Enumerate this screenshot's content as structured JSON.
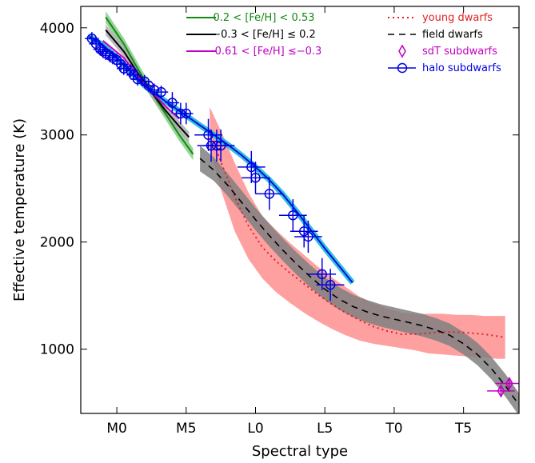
{
  "chart_data": {
    "type": "line",
    "xlabel": "Spectral type",
    "ylabel": "Effective temperature (K)",
    "xlim": [
      -2.6,
      29.0
    ],
    "ylim": [
      400,
      4200
    ],
    "grid": false,
    "x_tick_values": [
      0,
      5,
      10,
      15,
      20,
      25
    ],
    "x_tick_labels": [
      "M0",
      "M5",
      "L0",
      "L5",
      "T0",
      "T5"
    ],
    "y_tick_values": [
      1000,
      2000,
      3000,
      4000
    ],
    "y_tick_labels": [
      "1000",
      "2000",
      "3000",
      "4000"
    ],
    "legend_placement": "top-right",
    "colors": {
      "green": "#138a13",
      "black": "#000000",
      "magenta": "#c000c0",
      "red": "#e02020",
      "red_band": "#ff8080",
      "grey_band": "#808080",
      "blue": "#0000e0",
      "cyan": "#18b8d8"
    },
    "legend": [
      {
        "label": "0.2 < [Fe/H] < 0.53",
        "color": "#138a13",
        "style": "solid"
      },
      {
        "label": "−0.3 < [Fe/H] ≤ 0.2",
        "color": "#000000",
        "style": "solid"
      },
      {
        "label": "−0.61 < [Fe/H] ≤−0.3",
        "color": "#c000c0",
        "style": "solid"
      },
      {
        "label": "young dwarfs",
        "color": "#e02020",
        "style": "dotted"
      },
      {
        "label": "field dwarfs",
        "color": "#000000",
        "style": "dashed"
      },
      {
        "label": "sdT subdwarfs",
        "color": "#c000c0",
        "style": "diamond"
      },
      {
        "label": "halo subdwarfs",
        "color": "#0000e0",
        "style": "circle-line"
      }
    ],
    "series": [
      {
        "name": "0.2 < [Fe/H] < 0.53",
        "kind": "line",
        "band": true,
        "x": [
          -0.8,
          0.5,
          1.5,
          2.5,
          3.5,
          4.5,
          5.5
        ],
        "y": [
          4100,
          3850,
          3620,
          3400,
          3200,
          3000,
          2820
        ]
      },
      {
        "name": "−0.3 < [Fe/H] ≤ 0.2",
        "kind": "line",
        "band": true,
        "x": [
          -0.8,
          0.5,
          1.5,
          2.5,
          3.5,
          4.5,
          5.2
        ],
        "y": [
          3980,
          3780,
          3580,
          3400,
          3230,
          3080,
          2980
        ]
      },
      {
        "name": "−0.61 < [Fe/H] ≤−0.3",
        "kind": "line",
        "band": false,
        "x": [
          -1.0,
          0.5,
          1.5,
          2.5,
          3.5,
          4.5
        ],
        "y": [
          3880,
          3720,
          3550,
          3400,
          3270,
          3150
        ]
      },
      {
        "name": "young dwarfs",
        "kind": "dotted",
        "band": true,
        "x": [
          6.7,
          7.5,
          8.5,
          9.5,
          10.5,
          11.5,
          12.5,
          13.5,
          14.5,
          15.5,
          16.5,
          17.5,
          18.5,
          19.5,
          20.5,
          21.5,
          22.5,
          23.5,
          24.5,
          25.5,
          26.5,
          27.5,
          28.0
        ],
        "y": [
          3030,
          2750,
          2420,
          2150,
          1950,
          1820,
          1710,
          1610,
          1510,
          1420,
          1340,
          1270,
          1210,
          1170,
          1140,
          1140,
          1150,
          1160,
          1160,
          1150,
          1140,
          1120,
          1110
        ],
        "band_lower": [
          2870,
          2490,
          2100,
          1840,
          1660,
          1530,
          1430,
          1340,
          1260,
          1190,
          1130,
          1080,
          1050,
          1030,
          1010,
          990,
          960,
          950,
          940,
          930,
          920,
          910,
          910
        ],
        "band_upper": [
          3260,
          3040,
          2740,
          2460,
          2240,
          2110,
          1990,
          1880,
          1770,
          1670,
          1580,
          1490,
          1430,
          1380,
          1340,
          1330,
          1330,
          1330,
          1320,
          1320,
          1310,
          1310,
          1310
        ]
      },
      {
        "name": "field dwarfs",
        "kind": "dashed",
        "band": true,
        "x": [
          6.0,
          7.0,
          8.0,
          9.0,
          10.0,
          11.0,
          12.0,
          13.0,
          14.0,
          15.0,
          16.0,
          17.0,
          18.0,
          19.0,
          20.0,
          21.0,
          22.0,
          23.0,
          24.0,
          25.0,
          26.0,
          27.0,
          28.0,
          29.0
        ],
        "y": [
          2780,
          2670,
          2530,
          2370,
          2210,
          2060,
          1920,
          1790,
          1670,
          1560,
          1470,
          1400,
          1350,
          1310,
          1280,
          1250,
          1220,
          1180,
          1130,
          1050,
          950,
          820,
          660,
          480
        ],
        "band_lower": [
          2660,
          2570,
          2430,
          2270,
          2110,
          1960,
          1820,
          1690,
          1570,
          1460,
          1370,
          1300,
          1250,
          1210,
          1180,
          1150,
          1120,
          1080,
          1030,
          950,
          850,
          720,
          560,
          380
        ],
        "band_upper": [
          2900,
          2790,
          2640,
          2480,
          2320,
          2170,
          2030,
          1900,
          1780,
          1670,
          1580,
          1510,
          1460,
          1420,
          1390,
          1360,
          1330,
          1290,
          1240,
          1160,
          1060,
          930,
          770,
          590
        ]
      },
      {
        "name": "halo subdwarfs fit",
        "kind": "fit",
        "band": true,
        "x": [
          -2.0,
          -1.0,
          0.0,
          1.0,
          2.0,
          3.0,
          4.0,
          5.0,
          6.0,
          7.0,
          8.0,
          9.0,
          10.0,
          11.0,
          12.0,
          13.0,
          14.0,
          15.0,
          16.0,
          17.0
        ],
        "y": [
          3920,
          3840,
          3720,
          3590,
          3460,
          3360,
          3270,
          3180,
          3090,
          3000,
          2910,
          2810,
          2700,
          2580,
          2440,
          2280,
          2110,
          1940,
          1780,
          1620
        ]
      },
      {
        "name": "halo subdwarfs",
        "kind": "points",
        "x": [
          -1.8,
          -1.5,
          -1.2,
          -1.0,
          -0.8,
          -0.5,
          -0.3,
          0.0,
          0.3,
          0.5,
          1.0,
          1.2,
          1.5,
          2.0,
          2.3,
          2.7,
          3.2,
          4.0,
          4.6,
          5.0,
          6.6,
          6.8,
          7.2,
          7.5,
          9.7,
          10.0,
          11.0,
          12.7,
          13.5,
          13.8,
          14.8,
          15.4
        ],
        "y": [
          3900,
          3850,
          3800,
          3780,
          3760,
          3740,
          3720,
          3700,
          3660,
          3620,
          3600,
          3560,
          3520,
          3500,
          3460,
          3420,
          3400,
          3300,
          3200,
          3200,
          3000,
          2900,
          2900,
          2900,
          2700,
          2600,
          2450,
          2250,
          2100,
          2050,
          1700,
          1600
        ],
        "x_err": [
          0.5,
          0.5,
          0.5,
          0.5,
          0.5,
          0.5,
          0.5,
          0.5,
          0.5,
          0.5,
          0.5,
          0.5,
          0.5,
          0.5,
          0.5,
          0.5,
          0.5,
          0.5,
          0.5,
          0.5,
          1.0,
          1.0,
          1.0,
          1.0,
          1.0,
          1.0,
          1.0,
          1.0,
          1.0,
          1.0,
          1.0,
          1.0
        ],
        "y_err": [
          60,
          60,
          60,
          60,
          60,
          60,
          60,
          60,
          60,
          60,
          60,
          60,
          60,
          60,
          60,
          60,
          60,
          100,
          100,
          100,
          150,
          150,
          150,
          150,
          150,
          150,
          150,
          150,
          150,
          150,
          150,
          150
        ]
      },
      {
        "name": "sdT subdwarfs",
        "kind": "diamonds",
        "x": [
          27.7,
          28.3
        ],
        "y": [
          610,
          680
        ],
        "x_err": [
          1.0,
          1.0
        ],
        "y_err": [
          40,
          40
        ]
      }
    ]
  }
}
